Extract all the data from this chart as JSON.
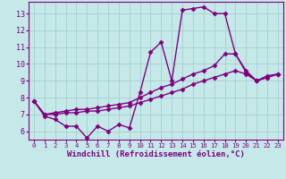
{
  "xlabel": "Windchill (Refroidissement éolien,°C)",
  "background_color": "#c5e8e8",
  "line_color": "#800080",
  "grid_color": "#a8d0d0",
  "xlim": [
    -0.5,
    23.5
  ],
  "ylim": [
    5.5,
    13.7
  ],
  "yticks": [
    6,
    7,
    8,
    9,
    10,
    11,
    12,
    13
  ],
  "xticks": [
    0,
    1,
    2,
    3,
    4,
    5,
    6,
    7,
    8,
    9,
    10,
    11,
    12,
    13,
    14,
    15,
    16,
    17,
    18,
    19,
    20,
    21,
    22,
    23
  ],
  "line1_x": [
    0,
    1,
    2,
    3,
    4,
    5,
    6,
    7,
    8,
    9,
    10,
    11,
    12,
    13,
    14,
    15,
    16,
    17,
    18,
    19,
    20,
    21,
    22,
    23
  ],
  "line1_y": [
    7.8,
    6.9,
    6.7,
    6.3,
    6.3,
    5.6,
    6.3,
    6.0,
    6.4,
    6.2,
    8.3,
    10.7,
    11.3,
    9.0,
    13.2,
    13.3,
    13.4,
    13.0,
    13.0,
    10.6,
    9.5,
    9.0,
    9.3,
    9.4
  ],
  "line2_x": [
    0,
    1,
    2,
    3,
    4,
    5,
    6,
    7,
    8,
    9,
    10,
    11,
    12,
    13,
    14,
    15,
    16,
    17,
    18,
    19,
    20,
    21,
    22,
    23
  ],
  "line2_y": [
    7.8,
    7.0,
    7.1,
    7.2,
    7.3,
    7.3,
    7.4,
    7.5,
    7.6,
    7.7,
    8.0,
    8.3,
    8.6,
    8.8,
    9.1,
    9.4,
    9.6,
    9.9,
    10.6,
    10.6,
    9.6,
    9.0,
    9.2,
    9.4
  ],
  "line3_x": [
    0,
    1,
    2,
    3,
    4,
    5,
    6,
    7,
    8,
    9,
    10,
    11,
    12,
    13,
    14,
    15,
    16,
    17,
    18,
    19,
    20,
    21,
    22,
    23
  ],
  "line3_y": [
    7.8,
    7.0,
    7.0,
    7.1,
    7.1,
    7.2,
    7.2,
    7.3,
    7.4,
    7.5,
    7.7,
    7.9,
    8.1,
    8.3,
    8.5,
    8.8,
    9.0,
    9.2,
    9.4,
    9.6,
    9.4,
    9.0,
    9.2,
    9.4
  ],
  "marker": "D",
  "markersize": 2.5,
  "linewidth": 1.0,
  "xlabel_fontsize": 6.5,
  "tick_fontsize": 6.0,
  "xtick_fontsize": 5.2
}
